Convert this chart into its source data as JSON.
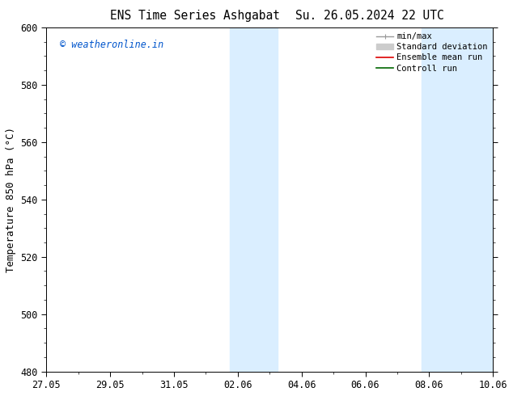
{
  "title_left": "ENS Time Series Ashgabat",
  "title_right": "Su. 26.05.2024 22 UTC",
  "ylabel": "Temperature 850 hPa (°C)",
  "ylim": [
    480,
    600
  ],
  "yticks": [
    480,
    500,
    520,
    540,
    560,
    580,
    600
  ],
  "xtick_labels": [
    "27.05",
    "29.05",
    "31.05",
    "02.06",
    "04.06",
    "06.06",
    "08.06",
    "10.06"
  ],
  "xtick_positions": [
    0,
    2,
    4,
    6,
    8,
    10,
    12,
    14
  ],
  "xlim": [
    0,
    14
  ],
  "watermark": "© weatheronline.in",
  "watermark_color": "#0055cc",
  "background_color": "#ffffff",
  "plot_bg_color": "#ffffff",
  "shaded_color": "#daeeff",
  "shaded_regions": [
    {
      "x_start": 5.75,
      "x_end": 7.25
    },
    {
      "x_start": 11.75,
      "x_end": 12.25
    },
    {
      "x_start": 12.25,
      "x_end": 14.0
    }
  ],
  "legend_items": [
    {
      "label": "min/max",
      "color": "#999999",
      "lw": 1.0
    },
    {
      "label": "Standard deviation",
      "color": "#cccccc",
      "lw": 5
    },
    {
      "label": "Ensemble mean run",
      "color": "#dd0000",
      "lw": 1.2
    },
    {
      "label": "Controll run",
      "color": "#006600",
      "lw": 1.2
    }
  ],
  "title_fontsize": 10.5,
  "tick_fontsize": 8.5,
  "ylabel_fontsize": 9,
  "legend_fontsize": 7.5,
  "watermark_fontsize": 8.5
}
